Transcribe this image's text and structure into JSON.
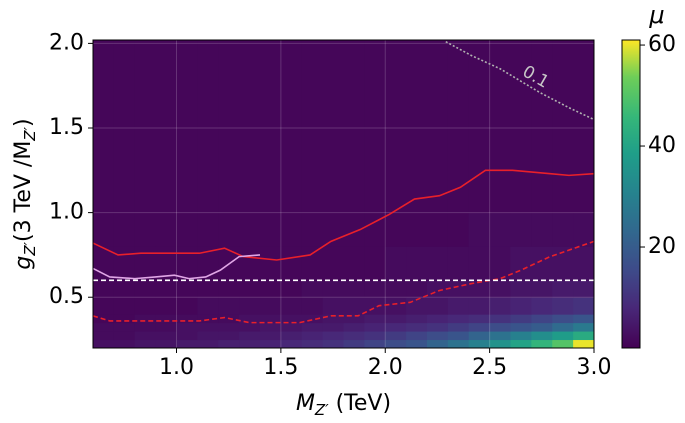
{
  "chart_data": {
    "type": "heatmap",
    "xlabel": [
      {
        "text": "M"
      },
      {
        "text": "Z′",
        "sub": true
      },
      {
        "text": "  (TeV)"
      }
    ],
    "ylabel": [
      {
        "text": "g"
      },
      {
        "text": "Z′",
        "sub": true
      },
      {
        "text": "(3 TeV /M"
      },
      {
        "text": "Z′",
        "sub": true
      },
      {
        "text": ")"
      }
    ],
    "colorbar_label": "μ",
    "xlim": [
      0.6,
      3.0
    ],
    "ylim": [
      0.2,
      2.02
    ],
    "xticks": [
      {
        "value": 1.0,
        "label": "1.0"
      },
      {
        "value": 1.5,
        "label": "1.5"
      },
      {
        "value": 2.0,
        "label": "2.0"
      },
      {
        "value": 2.5,
        "label": "2.5"
      },
      {
        "value": 3.0,
        "label": "3.0"
      }
    ],
    "yticks": [
      {
        "value": 0.5,
        "label": "0.5"
      },
      {
        "value": 1.0,
        "label": "1.0"
      },
      {
        "value": 1.5,
        "label": "1.5"
      },
      {
        "value": 2.0,
        "label": "2.0"
      }
    ],
    "clim": [
      0,
      61
    ],
    "cticks": [
      20,
      40,
      60
    ],
    "grid": true,
    "x_edges": [
      0.6,
      0.7,
      0.8,
      0.9,
      1.0,
      1.1,
      1.2,
      1.3,
      1.4,
      1.5,
      1.6,
      1.7,
      1.8,
      1.9,
      2.0,
      2.1,
      2.2,
      2.3,
      2.4,
      2.5,
      2.6,
      2.7,
      2.8,
      2.9,
      3.0
    ],
    "y_edges": [
      0.2,
      0.25,
      0.3,
      0.35,
      0.4,
      0.5,
      0.6,
      0.8,
      1.0,
      1.5,
      2.02
    ],
    "z": [
      [
        3,
        3,
        4,
        4,
        5,
        5,
        6,
        6,
        7,
        8,
        9,
        10,
        12,
        14,
        16,
        18,
        22,
        26,
        30,
        35,
        40,
        45,
        50,
        60
      ],
      [
        2,
        2,
        3,
        3,
        3,
        4,
        4,
        5,
        5,
        6,
        7,
        8,
        9,
        10,
        12,
        14,
        16,
        18,
        22,
        26,
        30,
        34,
        38,
        42
      ],
      [
        2,
        2,
        2,
        2,
        3,
        3,
        3,
        3,
        4,
        4,
        5,
        5,
        6,
        7,
        8,
        9,
        10,
        12,
        14,
        16,
        18,
        20,
        24,
        28
      ],
      [
        1,
        1,
        2,
        2,
        2,
        2,
        2,
        3,
        3,
        3,
        3,
        4,
        4,
        5,
        5,
        6,
        7,
        8,
        9,
        10,
        12,
        14,
        16,
        18
      ],
      [
        1,
        1,
        1,
        1,
        1,
        2,
        2,
        2,
        2,
        2,
        2,
        3,
        3,
        3,
        3,
        4,
        4,
        5,
        5,
        6,
        7,
        8,
        9,
        10
      ],
      [
        1,
        1,
        1,
        1,
        1,
        1,
        1,
        1,
        1,
        1,
        2,
        2,
        2,
        2,
        2,
        2,
        3,
        3,
        3,
        3,
        4,
        4,
        5,
        5
      ],
      [
        1,
        1,
        1,
        1,
        1,
        1,
        1,
        1,
        1,
        1,
        1,
        1,
        1,
        1,
        2,
        2,
        2,
        2,
        2,
        2,
        3,
        3,
        3,
        3
      ],
      [
        1,
        1,
        1,
        1,
        1,
        1,
        1,
        1,
        1,
        1,
        1,
        1,
        1,
        1,
        1,
        1,
        1,
        1,
        2,
        2,
        2,
        2,
        2,
        2
      ],
      [
        1,
        1,
        1,
        1,
        1,
        1,
        1,
        1,
        1,
        1,
        1,
        1,
        1,
        1,
        1,
        1,
        1,
        1,
        1,
        1,
        1,
        1,
        1,
        1
      ],
      [
        1,
        1,
        1,
        1,
        1,
        1,
        1,
        1,
        1,
        1,
        1,
        1,
        1,
        1,
        1,
        1,
        1,
        1,
        1,
        1,
        1,
        1,
        1,
        1
      ]
    ],
    "lines": [
      {
        "color": "#e8202a",
        "style": "solid",
        "x": [
          0.6,
          0.72,
          0.83,
          1.11,
          1.23,
          1.32,
          1.48,
          1.64,
          1.74,
          1.88,
          2.02,
          2.14,
          2.26,
          2.36,
          2.48,
          2.61,
          2.79,
          2.88,
          3.0
        ],
        "y": [
          0.82,
          0.75,
          0.76,
          0.76,
          0.79,
          0.74,
          0.72,
          0.75,
          0.83,
          0.9,
          0.99,
          1.08,
          1.1,
          1.15,
          1.25,
          1.25,
          1.23,
          1.22,
          1.23
        ]
      },
      {
        "color": "#e8202a",
        "style": "dashed",
        "x": [
          0.6,
          0.68,
          0.87,
          1.11,
          1.23,
          1.35,
          1.59,
          1.74,
          1.87,
          1.97,
          2.12,
          2.26,
          2.41,
          2.55,
          2.65,
          2.79,
          3.0
        ],
        "y": [
          0.39,
          0.36,
          0.36,
          0.36,
          0.38,
          0.35,
          0.35,
          0.39,
          0.39,
          0.45,
          0.47,
          0.54,
          0.58,
          0.61,
          0.66,
          0.74,
          0.83
        ]
      },
      {
        "color": "#e0a6e6",
        "style": "solid",
        "x": [
          0.6,
          0.68,
          0.8,
          0.9,
          0.99,
          1.06,
          1.14,
          1.21,
          1.3,
          1.4
        ],
        "y": [
          0.67,
          0.62,
          0.61,
          0.62,
          0.63,
          0.61,
          0.62,
          0.66,
          0.74,
          0.75
        ]
      },
      {
        "color": "#ffffff",
        "style": "dashed",
        "x": [
          0.6,
          3.0
        ],
        "y": [
          0.6,
          0.6
        ]
      },
      {
        "color": "#b0b0b0",
        "style": "dotted",
        "x": [
          2.29,
          2.41,
          2.55,
          2.74,
          2.88,
          3.0
        ],
        "y": [
          2.01,
          1.93,
          1.85,
          1.71,
          1.62,
          1.55
        ]
      }
    ],
    "annotations": [
      {
        "text": "0.1",
        "x": 2.72,
        "y": 1.8
      }
    ]
  }
}
